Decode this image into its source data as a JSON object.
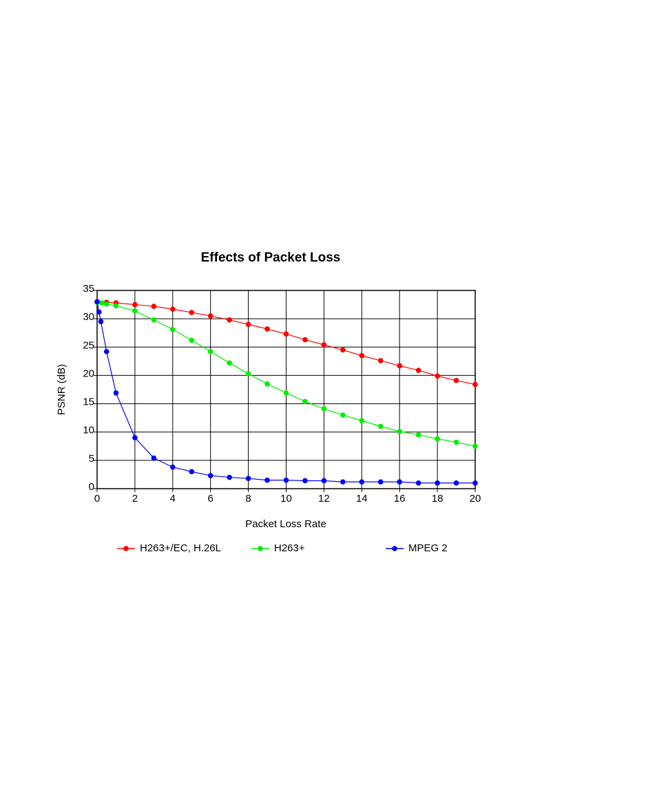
{
  "chart_data": {
    "type": "line",
    "title": "Effects of Packet Loss",
    "x_label": "Packet Loss Rate",
    "y_label": "PSNR (dB)",
    "xlim": [
      0,
      20
    ],
    "xticks": [
      0,
      2,
      4,
      6,
      8,
      10,
      12,
      14,
      16,
      18,
      20
    ],
    "ylim": [
      0,
      35
    ],
    "yticks": [
      0,
      5,
      10,
      15,
      20,
      25,
      30,
      35
    ],
    "grid": true,
    "series": [
      {
        "name": "H263+/EC, H.26L",
        "color": "#ff0000",
        "x": [
          0,
          0.5,
          1,
          2,
          3,
          4,
          5,
          6,
          7,
          8,
          9,
          10,
          11,
          12,
          13,
          14,
          15,
          16,
          17,
          18,
          19,
          20
        ],
        "values": [
          33,
          32.9,
          32.8,
          32.5,
          32.2,
          31.7,
          31.1,
          30.5,
          29.8,
          29.0,
          28.2,
          27.3,
          26.3,
          25.4,
          24.5,
          23.5,
          22.6,
          21.7,
          20.9,
          19.9,
          19.1,
          18.4
        ]
      },
      {
        "name": "H263+",
        "color": "#00ee00",
        "x": [
          0,
          0.25,
          0.5,
          1,
          2,
          3,
          4,
          5,
          6,
          7,
          8,
          9,
          10,
          11,
          12,
          13,
          14,
          15,
          16,
          17,
          18,
          19,
          20
        ],
        "values": [
          32.9,
          32.8,
          32.6,
          32.3,
          31.4,
          29.8,
          28.1,
          26.2,
          24.2,
          22.2,
          20.3,
          18.5,
          16.9,
          15.4,
          14.1,
          13.0,
          12.0,
          11.0,
          10.1,
          9.5,
          8.8,
          8.2,
          7.5
        ]
      },
      {
        "name": "MPEG 2",
        "color": "#0000ff",
        "x": [
          0,
          0.1,
          0.2,
          0.5,
          1,
          2,
          3,
          4,
          5,
          6,
          7,
          8,
          9,
          10,
          11,
          12,
          13,
          14,
          15,
          16,
          17,
          18,
          19,
          20
        ],
        "values": [
          33,
          31.2,
          29.5,
          24.2,
          16.9,
          9.0,
          5.4,
          3.8,
          3.0,
          2.3,
          2.0,
          1.8,
          1.5,
          1.5,
          1.4,
          1.4,
          1.2,
          1.2,
          1.2,
          1.2,
          1.0,
          1.0,
          1.0,
          1.0
        ]
      }
    ]
  }
}
